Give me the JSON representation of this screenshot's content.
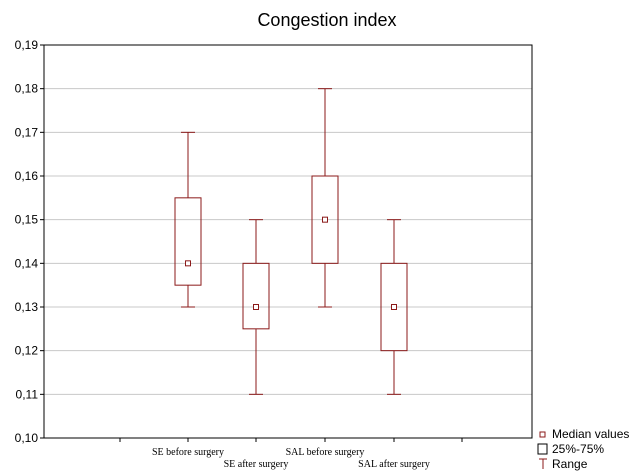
{
  "chart_data": {
    "type": "boxplot",
    "title": "Congestion index",
    "xlabel": "",
    "ylabel": "",
    "ylim": [
      0.1,
      0.19
    ],
    "yticks": [
      0.1,
      0.11,
      0.12,
      0.13,
      0.14,
      0.15,
      0.16,
      0.17,
      0.18,
      0.19
    ],
    "ytick_labels": [
      "0,10",
      "0,11",
      "0,12",
      "0,13",
      "0,14",
      "0,15",
      "0,16",
      "0,17",
      "0,18",
      "0,19"
    ],
    "grid": true,
    "categories": [
      "SE before surgery",
      "SE after surgery",
      "SAL before surgery",
      "SAL after surgery"
    ],
    "boxes": [
      {
        "label": "SE before surgery",
        "min": 0.13,
        "q1": 0.135,
        "median": 0.14,
        "q3": 0.155,
        "max": 0.17
      },
      {
        "label": "SE after surgery",
        "min": 0.11,
        "q1": 0.125,
        "median": 0.13,
        "q3": 0.14,
        "max": 0.15
      },
      {
        "label": "SAL before surgery",
        "min": 0.13,
        "q1": 0.14,
        "median": 0.15,
        "q3": 0.16,
        "max": 0.18
      },
      {
        "label": "SAL after surgery",
        "min": 0.11,
        "q1": 0.12,
        "median": 0.13,
        "q3": 0.14,
        "max": 0.15
      }
    ],
    "legend": {
      "position": "bottom-right",
      "items": [
        {
          "symbol": "median-square",
          "label": "Median values"
        },
        {
          "symbol": "box",
          "label": "25%-75%"
        },
        {
          "symbol": "range-whisker",
          "label": "Range"
        }
      ]
    },
    "colors": {
      "box": "#8b1a1a",
      "grid": "#c8c8c8",
      "frame": "#000000"
    }
  }
}
